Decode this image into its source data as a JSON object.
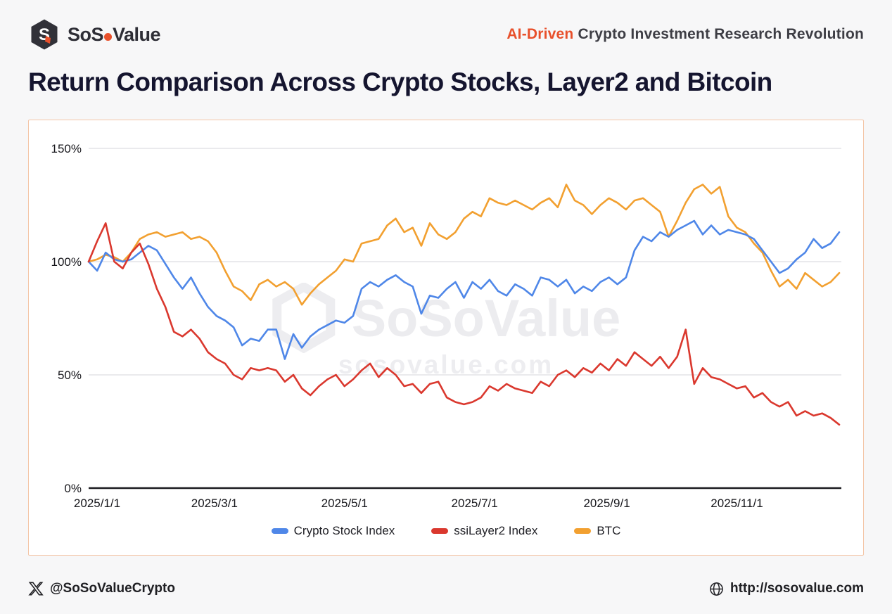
{
  "header": {
    "brand": {
      "wordmark_prefix": "SoS",
      "wordmark_suffix": "Value"
    },
    "tagline_highlight": "AI-Driven",
    "tagline_rest": " Crypto Investment Research Revolution"
  },
  "title": "Return Comparison Across Crypto Stocks, Layer2 and Bitcoin",
  "watermark": {
    "text": "SoSoValue",
    "subtext": "sosovalue.com"
  },
  "footer": {
    "twitter_handle": "@SoSoValueCrypto",
    "website": "http://sosovalue.com"
  },
  "colors": {
    "accent_orange": "#e8502b",
    "card_border": "#f4c6a8",
    "blue_line": "#4f87e8",
    "red_line": "#da382e",
    "orange_line": "#f2a030",
    "gridline": "#dddde2",
    "baseline": "#1b1b20"
  },
  "chart_data": {
    "type": "line",
    "title": "Return Comparison Across Crypto Stocks, Layer2 and Bitcoin",
    "x_start_date": "2025/1/1",
    "x_days_span": 353,
    "sample_interval_days": 4,
    "grid": true,
    "legend_position": "bottom",
    "ylim": [
      0,
      160
    ],
    "y_ticks": [
      {
        "value": 0,
        "label": "0%"
      },
      {
        "value": 50,
        "label": "50%"
      },
      {
        "value": 100,
        "label": "100%"
      },
      {
        "value": 150,
        "label": "150%"
      }
    ],
    "x_ticks": [
      {
        "day": 0,
        "label": "2025/1/1"
      },
      {
        "day": 59,
        "label": "2025/3/1"
      },
      {
        "day": 120,
        "label": "2025/5/1"
      },
      {
        "day": 181,
        "label": "2025/7/1"
      },
      {
        "day": 243,
        "label": "2025/9/1"
      },
      {
        "day": 304,
        "label": "2025/11/1"
      }
    ],
    "series": [
      {
        "name": "Crypto Stock Index",
        "color": "#4f87e8",
        "values": [
          100,
          96,
          104,
          101,
          100,
          101,
          104,
          107,
          105,
          99,
          93,
          88,
          93,
          86,
          80,
          76,
          74,
          71,
          63,
          66,
          65,
          70,
          70,
          57,
          68,
          62,
          67,
          70,
          72,
          74,
          73,
          76,
          88,
          91,
          89,
          92,
          94,
          91,
          89,
          77,
          85,
          84,
          88,
          91,
          84,
          91,
          88,
          92,
          87,
          85,
          90,
          88,
          85,
          93,
          92,
          89,
          92,
          86,
          89,
          87,
          91,
          93,
          90,
          93,
          105,
          111,
          109,
          113,
          111,
          114,
          116,
          118,
          112,
          116,
          112,
          114,
          113,
          112,
          110,
          105,
          100,
          95,
          97,
          101,
          104,
          110,
          106,
          108,
          113
        ]
      },
      {
        "name": "ssiLayer2 Index",
        "color": "#da382e",
        "values": [
          100,
          109,
          117,
          100,
          97,
          104,
          108,
          99,
          88,
          80,
          69,
          67,
          70,
          66,
          60,
          57,
          55,
          50,
          48,
          53,
          52,
          53,
          52,
          47,
          50,
          44,
          41,
          45,
          48,
          50,
          45,
          48,
          52,
          55,
          49,
          53,
          50,
          45,
          46,
          42,
          46,
          47,
          40,
          38,
          37,
          38,
          40,
          45,
          43,
          46,
          44,
          43,
          42,
          47,
          45,
          50,
          52,
          49,
          53,
          51,
          55,
          52,
          57,
          54,
          60,
          57,
          54,
          58,
          53,
          58,
          70,
          46,
          53,
          49,
          48,
          46,
          44,
          45,
          40,
          42,
          38,
          36,
          38,
          32,
          34,
          32,
          33,
          31,
          28
        ]
      },
      {
        "name": "BTC",
        "color": "#f2a030",
        "values": [
          100,
          101,
          103,
          102,
          100,
          104,
          110,
          112,
          113,
          111,
          112,
          113,
          110,
          111,
          109,
          104,
          96,
          89,
          87,
          83,
          90,
          92,
          89,
          91,
          88,
          81,
          86,
          90,
          93,
          96,
          101,
          100,
          108,
          109,
          110,
          116,
          119,
          113,
          115,
          107,
          117,
          112,
          110,
          113,
          119,
          122,
          120,
          128,
          126,
          125,
          127,
          125,
          123,
          126,
          128,
          124,
          134,
          127,
          125,
          121,
          125,
          128,
          126,
          123,
          127,
          128,
          125,
          122,
          111,
          118,
          126,
          132,
          134,
          130,
          133,
          120,
          115,
          113,
          108,
          104,
          96,
          89,
          92,
          88,
          95,
          92,
          89,
          91,
          95
        ]
      }
    ]
  }
}
